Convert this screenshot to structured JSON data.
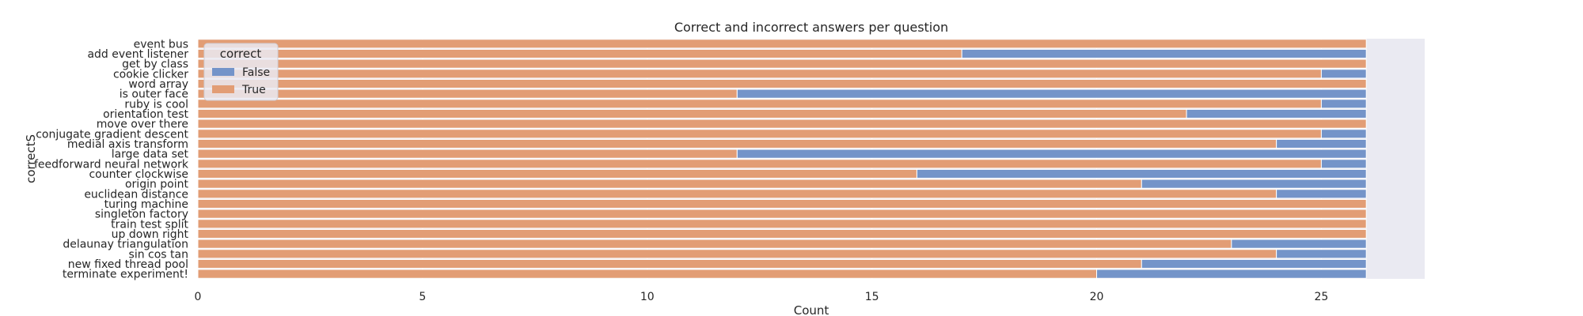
{
  "chart_data": {
    "type": "bar",
    "orientation": "horizontal",
    "stacked": true,
    "title": "Correct and incorrect answers per question",
    "xlabel": "Count",
    "ylabel": "correctS",
    "xlim": [
      0,
      27.3
    ],
    "xticks": [
      0,
      5,
      10,
      15,
      20,
      25
    ],
    "grid": true,
    "legend": {
      "title": "correct",
      "placement": "top-left",
      "entries": [
        "False",
        "True"
      ]
    },
    "categories": [
      "event bus",
      "add event listener",
      "get by class",
      "cookie clicker",
      "word array",
      "is outer face",
      "ruby is cool",
      "orientation test",
      "move over there",
      "conjugate gradient descent",
      "medial axis transform",
      "large data set",
      "feedforward neural network",
      "counter clockwise",
      "origin point",
      "euclidean distance",
      "turing machine",
      "singleton factory",
      "train test split",
      "up down right",
      "delaunay triangulation",
      "sin cos tan",
      "new fixed thread pool",
      "terminate experiment!"
    ],
    "series": [
      {
        "name": "False",
        "color": "#7494c9",
        "values": [
          0,
          9,
          0,
          1,
          0,
          14,
          1,
          4,
          0,
          1,
          2,
          14,
          1,
          10,
          5,
          2,
          0,
          0,
          0,
          0,
          3,
          2,
          5,
          6
        ]
      },
      {
        "name": "True",
        "color": "#e29d75",
        "values": [
          26,
          17,
          26,
          25,
          26,
          12,
          25,
          22,
          26,
          25,
          24,
          12,
          25,
          16,
          21,
          24,
          26,
          26,
          26,
          26,
          23,
          24,
          21,
          20
        ]
      }
    ],
    "stack_order": [
      "True",
      "False"
    ],
    "colors": {
      "plot_background": "#eaeaf2",
      "grid": "#ffffff"
    }
  }
}
